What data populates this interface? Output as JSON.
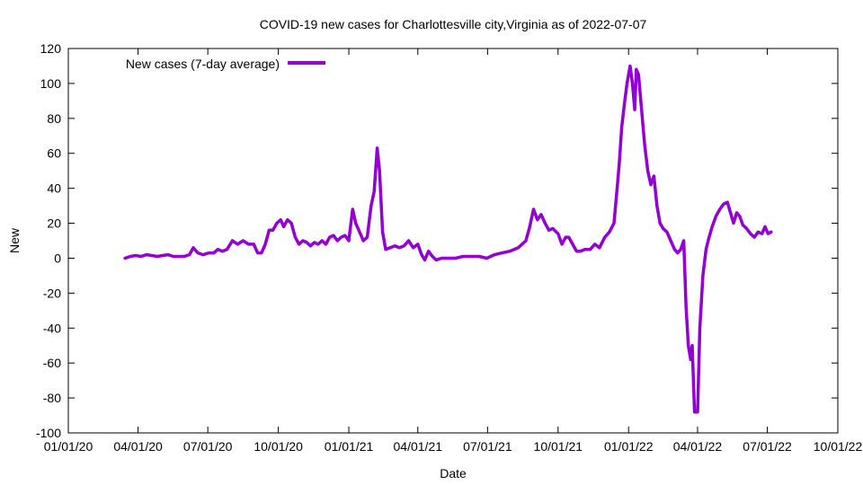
{
  "chart_data": {
    "type": "line",
    "title": "COVID-19 new cases for Charlottesville city,Virginia as of 2022-07-07",
    "xlabel": "Date",
    "ylabel": "New",
    "x_tick_labels": [
      "01/01/20",
      "04/01/20",
      "07/01/20",
      "10/01/20",
      "01/01/21",
      "04/01/21",
      "07/01/21",
      "10/01/21",
      "01/01/22",
      "04/01/22",
      "07/01/22",
      "10/01/22"
    ],
    "x_tick_dates": [
      "2020-01-01",
      "2020-04-01",
      "2020-07-01",
      "2020-10-01",
      "2021-01-01",
      "2021-04-01",
      "2021-07-01",
      "2021-10-01",
      "2022-01-01",
      "2022-04-01",
      "2022-07-01",
      "2022-10-01"
    ],
    "xlim": [
      "2020-01-01",
      "2022-10-01"
    ],
    "ylim": [
      -100,
      120
    ],
    "y_ticks": [
      -100,
      -80,
      -60,
      -40,
      -20,
      0,
      20,
      40,
      60,
      80,
      100,
      120
    ],
    "grid": false,
    "legend_position": "top-left",
    "series": [
      {
        "name": "New cases (7-day average)",
        "color": "#9400d3",
        "points": [
          [
            "2020-03-15",
            0
          ],
          [
            "2020-03-22",
            1
          ],
          [
            "2020-03-29",
            1.5
          ],
          [
            "2020-04-05",
            1
          ],
          [
            "2020-04-12",
            2
          ],
          [
            "2020-04-19",
            1.5
          ],
          [
            "2020-04-26",
            1
          ],
          [
            "2020-05-03",
            1.5
          ],
          [
            "2020-05-10",
            2
          ],
          [
            "2020-05-17",
            1
          ],
          [
            "2020-05-24",
            1
          ],
          [
            "2020-05-31",
            1
          ],
          [
            "2020-06-07",
            2
          ],
          [
            "2020-06-12",
            6
          ],
          [
            "2020-06-18",
            3
          ],
          [
            "2020-06-25",
            2
          ],
          [
            "2020-07-02",
            3
          ],
          [
            "2020-07-09",
            3
          ],
          [
            "2020-07-14",
            5
          ],
          [
            "2020-07-20",
            4
          ],
          [
            "2020-07-26",
            5
          ],
          [
            "2020-08-02",
            10
          ],
          [
            "2020-08-09",
            8
          ],
          [
            "2020-08-16",
            10
          ],
          [
            "2020-08-23",
            8
          ],
          [
            "2020-08-30",
            8
          ],
          [
            "2020-09-04",
            3
          ],
          [
            "2020-09-09",
            3
          ],
          [
            "2020-09-14",
            8
          ],
          [
            "2020-09-19",
            16
          ],
          [
            "2020-09-24",
            16
          ],
          [
            "2020-09-29",
            20
          ],
          [
            "2020-10-04",
            22
          ],
          [
            "2020-10-08",
            18
          ],
          [
            "2020-10-13",
            22
          ],
          [
            "2020-10-18",
            20
          ],
          [
            "2020-10-23",
            12
          ],
          [
            "2020-10-28",
            8
          ],
          [
            "2020-11-02",
            10
          ],
          [
            "2020-11-07",
            9
          ],
          [
            "2020-11-12",
            7
          ],
          [
            "2020-11-17",
            9
          ],
          [
            "2020-11-22",
            8
          ],
          [
            "2020-11-27",
            10
          ],
          [
            "2020-12-02",
            8
          ],
          [
            "2020-12-07",
            12
          ],
          [
            "2020-12-12",
            13
          ],
          [
            "2020-12-17",
            10
          ],
          [
            "2020-12-22",
            12
          ],
          [
            "2020-12-27",
            13
          ],
          [
            "2021-01-01",
            10
          ],
          [
            "2021-01-06",
            28
          ],
          [
            "2021-01-10",
            20
          ],
          [
            "2021-01-15",
            15
          ],
          [
            "2021-01-20",
            10
          ],
          [
            "2021-01-25",
            12
          ],
          [
            "2021-01-30",
            30
          ],
          [
            "2021-02-03",
            38
          ],
          [
            "2021-02-07",
            63
          ],
          [
            "2021-02-10",
            50
          ],
          [
            "2021-02-14",
            15
          ],
          [
            "2021-02-18",
            5
          ],
          [
            "2021-02-24",
            6
          ],
          [
            "2021-03-02",
            7
          ],
          [
            "2021-03-08",
            6
          ],
          [
            "2021-03-14",
            7
          ],
          [
            "2021-03-20",
            10
          ],
          [
            "2021-03-26",
            6
          ],
          [
            "2021-04-01",
            8
          ],
          [
            "2021-04-06",
            2
          ],
          [
            "2021-04-10",
            -1
          ],
          [
            "2021-04-15",
            4
          ],
          [
            "2021-04-20",
            1
          ],
          [
            "2021-04-25",
            -1
          ],
          [
            "2021-05-02",
            0
          ],
          [
            "2021-05-10",
            0
          ],
          [
            "2021-05-20",
            0
          ],
          [
            "2021-05-30",
            1
          ],
          [
            "2021-06-10",
            1
          ],
          [
            "2021-06-20",
            1
          ],
          [
            "2021-06-30",
            0
          ],
          [
            "2021-07-10",
            2
          ],
          [
            "2021-07-20",
            3
          ],
          [
            "2021-07-30",
            4
          ],
          [
            "2021-08-10",
            6
          ],
          [
            "2021-08-20",
            10
          ],
          [
            "2021-08-25",
            18
          ],
          [
            "2021-08-30",
            28
          ],
          [
            "2021-09-04",
            22
          ],
          [
            "2021-09-09",
            25
          ],
          [
            "2021-09-14",
            20
          ],
          [
            "2021-09-19",
            16
          ],
          [
            "2021-09-24",
            17
          ],
          [
            "2021-10-01",
            14
          ],
          [
            "2021-10-06",
            8
          ],
          [
            "2021-10-11",
            12
          ],
          [
            "2021-10-15",
            12
          ],
          [
            "2021-10-20",
            8
          ],
          [
            "2021-10-25",
            4
          ],
          [
            "2021-10-30",
            4
          ],
          [
            "2021-11-05",
            5
          ],
          [
            "2021-11-12",
            5
          ],
          [
            "2021-11-18",
            8
          ],
          [
            "2021-11-24",
            6
          ],
          [
            "2021-12-01",
            12
          ],
          [
            "2021-12-07",
            15
          ],
          [
            "2021-12-13",
            20
          ],
          [
            "2021-12-17",
            40
          ],
          [
            "2021-12-20",
            55
          ],
          [
            "2021-12-23",
            75
          ],
          [
            "2021-12-27",
            90
          ],
          [
            "2021-12-30",
            100
          ],
          [
            "2022-01-03",
            110
          ],
          [
            "2022-01-06",
            100
          ],
          [
            "2022-01-09",
            85
          ],
          [
            "2022-01-11",
            108
          ],
          [
            "2022-01-14",
            105
          ],
          [
            "2022-01-18",
            85
          ],
          [
            "2022-01-22",
            65
          ],
          [
            "2022-01-26",
            50
          ],
          [
            "2022-01-30",
            42
          ],
          [
            "2022-02-03",
            47
          ],
          [
            "2022-02-07",
            30
          ],
          [
            "2022-02-11",
            20
          ],
          [
            "2022-02-15",
            17
          ],
          [
            "2022-02-20",
            15
          ],
          [
            "2022-02-25",
            10
          ],
          [
            "2022-03-02",
            5
          ],
          [
            "2022-03-06",
            3
          ],
          [
            "2022-03-10",
            5
          ],
          [
            "2022-03-14",
            10
          ],
          [
            "2022-03-17",
            -28
          ],
          [
            "2022-03-20",
            -50
          ],
          [
            "2022-03-23",
            -58
          ],
          [
            "2022-03-25",
            -50
          ],
          [
            "2022-03-28",
            -88
          ],
          [
            "2022-04-01",
            -88
          ],
          [
            "2022-04-04",
            -40
          ],
          [
            "2022-04-08",
            -10
          ],
          [
            "2022-04-12",
            5
          ],
          [
            "2022-04-16",
            12
          ],
          [
            "2022-04-20",
            18
          ],
          [
            "2022-04-25",
            24
          ],
          [
            "2022-04-30",
            28
          ],
          [
            "2022-05-05",
            31
          ],
          [
            "2022-05-10",
            32
          ],
          [
            "2022-05-14",
            26
          ],
          [
            "2022-05-18",
            20
          ],
          [
            "2022-05-22",
            26
          ],
          [
            "2022-05-26",
            24
          ],
          [
            "2022-05-30",
            19
          ],
          [
            "2022-06-04",
            17
          ],
          [
            "2022-06-09",
            14
          ],
          [
            "2022-06-14",
            12
          ],
          [
            "2022-06-19",
            15
          ],
          [
            "2022-06-24",
            14
          ],
          [
            "2022-06-28",
            18
          ],
          [
            "2022-07-02",
            14
          ],
          [
            "2022-07-06",
            15
          ]
        ]
      }
    ]
  }
}
